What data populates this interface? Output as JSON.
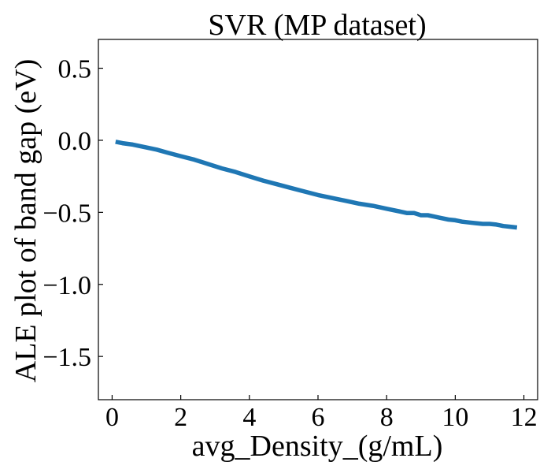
{
  "chart_data": {
    "type": "line",
    "title": "SVR (MP dataset)",
    "xlabel": "avg_Density_(g/mL)",
    "ylabel": "ALE plot of band gap (eV)",
    "xlim": [
      -0.4,
      12.4
    ],
    "ylim": [
      -1.8,
      0.7
    ],
    "xticks": [
      0,
      2,
      4,
      6,
      8,
      10,
      12
    ],
    "yticks": [
      0.5,
      0.0,
      -0.5,
      -1.0,
      -1.5
    ],
    "xtick_labels": [
      "0",
      "2",
      "4",
      "6",
      "8",
      "10",
      "12"
    ],
    "ytick_labels": [
      "0.5",
      "0.0",
      "−0.5",
      "−1.0",
      "−1.5"
    ],
    "grid": false,
    "series": [
      {
        "color": "#1f77b4",
        "x": [
          0.1,
          0.3,
          0.6,
          1.0,
          1.3,
          1.6,
          2.0,
          2.4,
          2.8,
          3.2,
          3.6,
          4.0,
          4.4,
          4.8,
          5.2,
          5.6,
          6.0,
          6.4,
          6.8,
          7.2,
          7.6,
          8.0,
          8.4,
          8.6,
          8.8,
          9.0,
          9.2,
          9.4,
          9.6,
          9.8,
          10.0,
          10.2,
          10.4,
          10.6,
          10.8,
          11.0,
          11.2,
          11.4,
          11.6,
          11.8
        ],
        "y": [
          -0.01,
          -0.02,
          -0.03,
          -0.05,
          -0.065,
          -0.085,
          -0.11,
          -0.135,
          -0.165,
          -0.195,
          -0.22,
          -0.25,
          -0.28,
          -0.305,
          -0.33,
          -0.355,
          -0.38,
          -0.4,
          -0.42,
          -0.44,
          -0.455,
          -0.475,
          -0.495,
          -0.505,
          -0.505,
          -0.52,
          -0.52,
          -0.53,
          -0.54,
          -0.55,
          -0.555,
          -0.565,
          -0.57,
          -0.575,
          -0.58,
          -0.58,
          -0.585,
          -0.595,
          -0.6,
          -0.605
        ]
      }
    ]
  }
}
